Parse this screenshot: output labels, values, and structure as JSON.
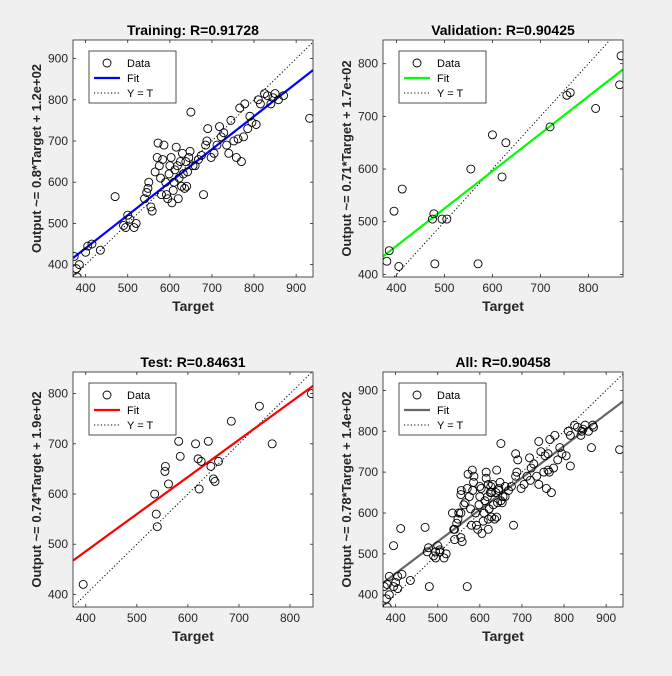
{
  "figure": {
    "background": "#f0f0f0"
  },
  "chart_data": [
    {
      "type": "scatter",
      "title": "Training: R=0.91728",
      "xlabel": "Target",
      "ylabel": "Output ~= 0.8*Target + 1.2e+02",
      "xlim": [
        370,
        940
      ],
      "ylim": [
        370,
        945
      ],
      "xticks": [
        400,
        500,
        600,
        700,
        800,
        900
      ],
      "yticks": [
        400,
        500,
        600,
        700,
        800,
        900
      ],
      "fit": {
        "slope": 0.8,
        "intercept": 120,
        "color": "#0000ff"
      },
      "legend": {
        "position": "top-left",
        "entries": [
          "Data",
          "Fit",
          "Y = T"
        ]
      },
      "points": [
        [
          373,
          420
        ],
        [
          378,
          390
        ],
        [
          380,
          370
        ],
        [
          385,
          400
        ],
        [
          400,
          430
        ],
        [
          405,
          445
        ],
        [
          415,
          450
        ],
        [
          435,
          435
        ],
        [
          470,
          565
        ],
        [
          490,
          495
        ],
        [
          495,
          490
        ],
        [
          500,
          520
        ],
        [
          505,
          510
        ],
        [
          515,
          490
        ],
        [
          520,
          500
        ],
        [
          540,
          560
        ],
        [
          545,
          575
        ],
        [
          548,
          585
        ],
        [
          550,
          600
        ],
        [
          555,
          540
        ],
        [
          558,
          530
        ],
        [
          565,
          625
        ],
        [
          570,
          660
        ],
        [
          572,
          695
        ],
        [
          575,
          640
        ],
        [
          578,
          610
        ],
        [
          580,
          570
        ],
        [
          583,
          655
        ],
        [
          586,
          690
        ],
        [
          590,
          600
        ],
        [
          592,
          570
        ],
        [
          595,
          560
        ],
        [
          598,
          620
        ],
        [
          600,
          640
        ],
        [
          603,
          660
        ],
        [
          605,
          550
        ],
        [
          608,
          580
        ],
        [
          610,
          600
        ],
        [
          612,
          630
        ],
        [
          615,
          685
        ],
        [
          618,
          640
        ],
        [
          620,
          560
        ],
        [
          622,
          610
        ],
        [
          625,
          650
        ],
        [
          628,
          590
        ],
        [
          630,
          670
        ],
        [
          632,
          620
        ],
        [
          635,
          585
        ],
        [
          638,
          650
        ],
        [
          640,
          590
        ],
        [
          642,
          625
        ],
        [
          645,
          660
        ],
        [
          648,
          675
        ],
        [
          650,
          770
        ],
        [
          655,
          640
        ],
        [
          660,
          640
        ],
        [
          668,
          655
        ],
        [
          675,
          665
        ],
        [
          680,
          570
        ],
        [
          685,
          690
        ],
        [
          688,
          700
        ],
        [
          690,
          730
        ],
        [
          698,
          660
        ],
        [
          705,
          670
        ],
        [
          712,
          690
        ],
        [
          718,
          735
        ],
        [
          722,
          710
        ],
        [
          728,
          720
        ],
        [
          735,
          690
        ],
        [
          740,
          670
        ],
        [
          745,
          750
        ],
        [
          752,
          700
        ],
        [
          758,
          660
        ],
        [
          762,
          705
        ],
        [
          766,
          780
        ],
        [
          770,
          650
        ],
        [
          775,
          710
        ],
        [
          778,
          790
        ],
        [
          785,
          730
        ],
        [
          790,
          760
        ],
        [
          795,
          745
        ],
        [
          805,
          740
        ],
        [
          810,
          800
        ],
        [
          815,
          790
        ],
        [
          825,
          815
        ],
        [
          832,
          810
        ],
        [
          840,
          790
        ],
        [
          845,
          805
        ],
        [
          850,
          815
        ],
        [
          858,
          800
        ],
        [
          870,
          810
        ],
        [
          932,
          755
        ]
      ]
    },
    {
      "type": "scatter",
      "title": "Validation: R=0.90425",
      "xlabel": "Target",
      "ylabel": "Output ~= 0.71*Target + 1.7e+02",
      "xlim": [
        372,
        872
      ],
      "ylim": [
        395,
        845
      ],
      "xticks": [
        400,
        500,
        600,
        700,
        800
      ],
      "yticks": [
        400,
        500,
        600,
        700,
        800
      ],
      "fit": {
        "slope": 0.71,
        "intercept": 170,
        "color": "#00ff00"
      },
      "legend": {
        "position": "top-left",
        "entries": [
          "Data",
          "Fit",
          "Y = T"
        ]
      },
      "points": [
        [
          380,
          425
        ],
        [
          385,
          445
        ],
        [
          395,
          520
        ],
        [
          405,
          415
        ],
        [
          412,
          562
        ],
        [
          475,
          505
        ],
        [
          478,
          515
        ],
        [
          480,
          420
        ],
        [
          495,
          505
        ],
        [
          505,
          505
        ],
        [
          555,
          600
        ],
        [
          570,
          420
        ],
        [
          600,
          665
        ],
        [
          620,
          585
        ],
        [
          628,
          650
        ],
        [
          720,
          680
        ],
        [
          755,
          740
        ],
        [
          762,
          745
        ],
        [
          815,
          715
        ],
        [
          865,
          760
        ],
        [
          868,
          815
        ]
      ]
    },
    {
      "type": "scatter",
      "title": "Test: R=0.84631",
      "xlabel": "Target",
      "ylabel": "Output ~= 0.74*Target + 1.9e+02",
      "xlim": [
        375,
        845
      ],
      "ylim": [
        375,
        843
      ],
      "xticks": [
        400,
        500,
        600,
        700,
        800
      ],
      "yticks": [
        400,
        500,
        600,
        700,
        800
      ],
      "fit": {
        "slope": 0.74,
        "intercept": 190,
        "color": "#ff0000"
      },
      "legend": {
        "position": "top-left",
        "entries": [
          "Data",
          "Fit",
          "Y = T"
        ]
      },
      "points": [
        [
          395,
          420
        ],
        [
          535,
          600
        ],
        [
          538,
          560
        ],
        [
          540,
          535
        ],
        [
          555,
          645
        ],
        [
          556,
          655
        ],
        [
          562,
          620
        ],
        [
          582,
          705
        ],
        [
          585,
          675
        ],
        [
          615,
          700
        ],
        [
          620,
          670
        ],
        [
          622,
          610
        ],
        [
          626,
          665
        ],
        [
          640,
          705
        ],
        [
          645,
          655
        ],
        [
          650,
          630
        ],
        [
          653,
          625
        ],
        [
          660,
          665
        ],
        [
          685,
          745
        ],
        [
          740,
          775
        ],
        [
          765,
          700
        ],
        [
          842,
          800
        ]
      ]
    },
    {
      "type": "scatter",
      "title": "All: R=0.90458",
      "xlabel": "Target",
      "ylabel": "Output ~= 0.78*Target + 1.4e+02",
      "xlim": [
        370,
        940
      ],
      "ylim": [
        370,
        945
      ],
      "xticks": [
        400,
        500,
        600,
        700,
        800,
        900
      ],
      "yticks": [
        400,
        500,
        600,
        700,
        800,
        900
      ],
      "fit": {
        "slope": 0.78,
        "intercept": 140,
        "color": "#666666"
      },
      "legend": {
        "position": "top-left",
        "entries": [
          "Data",
          "Fit",
          "Y = T"
        ]
      },
      "points": [
        [
          373,
          420
        ],
        [
          378,
          390
        ],
        [
          380,
          370
        ],
        [
          385,
          400
        ],
        [
          400,
          430
        ],
        [
          405,
          445
        ],
        [
          415,
          450
        ],
        [
          435,
          435
        ],
        [
          470,
          565
        ],
        [
          490,
          495
        ],
        [
          495,
          490
        ],
        [
          500,
          520
        ],
        [
          505,
          510
        ],
        [
          515,
          490
        ],
        [
          520,
          500
        ],
        [
          540,
          560
        ],
        [
          545,
          575
        ],
        [
          548,
          585
        ],
        [
          550,
          600
        ],
        [
          555,
          540
        ],
        [
          558,
          530
        ],
        [
          565,
          625
        ],
        [
          570,
          660
        ],
        [
          572,
          695
        ],
        [
          575,
          640
        ],
        [
          578,
          610
        ],
        [
          580,
          570
        ],
        [
          583,
          655
        ],
        [
          586,
          690
        ],
        [
          590,
          600
        ],
        [
          592,
          570
        ],
        [
          595,
          560
        ],
        [
          598,
          620
        ],
        [
          600,
          640
        ],
        [
          603,
          660
        ],
        [
          605,
          550
        ],
        [
          608,
          580
        ],
        [
          610,
          600
        ],
        [
          612,
          630
        ],
        [
          615,
          685
        ],
        [
          618,
          640
        ],
        [
          620,
          560
        ],
        [
          622,
          610
        ],
        [
          625,
          650
        ],
        [
          628,
          590
        ],
        [
          630,
          670
        ],
        [
          632,
          620
        ],
        [
          635,
          585
        ],
        [
          638,
          650
        ],
        [
          640,
          590
        ],
        [
          642,
          625
        ],
        [
          645,
          660
        ],
        [
          648,
          675
        ],
        [
          650,
          770
        ],
        [
          655,
          640
        ],
        [
          660,
          640
        ],
        [
          668,
          655
        ],
        [
          675,
          665
        ],
        [
          680,
          570
        ],
        [
          685,
          690
        ],
        [
          688,
          700
        ],
        [
          690,
          730
        ],
        [
          698,
          660
        ],
        [
          705,
          670
        ],
        [
          712,
          690
        ],
        [
          718,
          735
        ],
        [
          722,
          710
        ],
        [
          728,
          720
        ],
        [
          735,
          690
        ],
        [
          740,
          670
        ],
        [
          745,
          750
        ],
        [
          752,
          700
        ],
        [
          758,
          660
        ],
        [
          762,
          705
        ],
        [
          766,
          780
        ],
        [
          770,
          650
        ],
        [
          775,
          710
        ],
        [
          778,
          790
        ],
        [
          785,
          730
        ],
        [
          790,
          760
        ],
        [
          795,
          745
        ],
        [
          805,
          740
        ],
        [
          810,
          800
        ],
        [
          815,
          790
        ],
        [
          825,
          815
        ],
        [
          832,
          810
        ],
        [
          840,
          790
        ],
        [
          845,
          805
        ],
        [
          850,
          815
        ],
        [
          858,
          800
        ],
        [
          870,
          810
        ],
        [
          932,
          755
        ],
        [
          380,
          425
        ],
        [
          385,
          445
        ],
        [
          395,
          520
        ],
        [
          405,
          415
        ],
        [
          412,
          562
        ],
        [
          475,
          505
        ],
        [
          478,
          515
        ],
        [
          480,
          420
        ],
        [
          495,
          505
        ],
        [
          505,
          505
        ],
        [
          555,
          600
        ],
        [
          570,
          420
        ],
        [
          600,
          665
        ],
        [
          620,
          585
        ],
        [
          628,
          650
        ],
        [
          720,
          680
        ],
        [
          755,
          740
        ],
        [
          762,
          745
        ],
        [
          815,
          715
        ],
        [
          865,
          760
        ],
        [
          868,
          815
        ],
        [
          395,
          420
        ],
        [
          535,
          600
        ],
        [
          538,
          560
        ],
        [
          540,
          535
        ],
        [
          555,
          645
        ],
        [
          556,
          655
        ],
        [
          562,
          620
        ],
        [
          582,
          705
        ],
        [
          585,
          675
        ],
        [
          615,
          700
        ],
        [
          620,
          670
        ],
        [
          622,
          610
        ],
        [
          626,
          665
        ],
        [
          640,
          705
        ],
        [
          645,
          655
        ],
        [
          650,
          630
        ],
        [
          653,
          625
        ],
        [
          660,
          665
        ],
        [
          685,
          745
        ],
        [
          740,
          775
        ],
        [
          765,
          700
        ],
        [
          842,
          800
        ]
      ]
    }
  ]
}
